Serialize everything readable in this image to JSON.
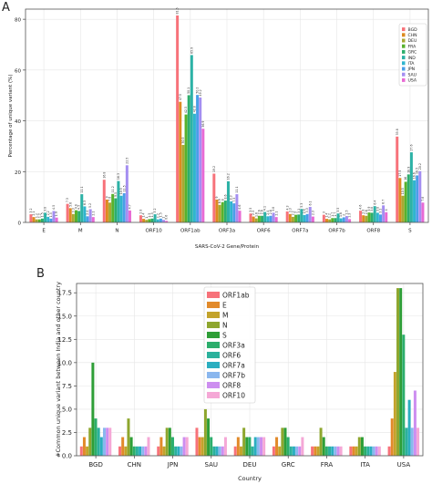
{
  "chart_data": [
    {
      "panel": "A",
      "type": "bar",
      "xlabel": "SARS-CoV-2 Gene/Protein",
      "ylabel": "Percentage of unique variant (%)",
      "ylim": [
        0,
        84
      ],
      "yticks": [
        0,
        20,
        40,
        60,
        80
      ],
      "categories": [
        "E",
        "M",
        "N",
        "ORF10",
        "ORF1ab",
        "ORF3a",
        "ORF6",
        "ORF7a",
        "ORF7b",
        "ORF8",
        "S"
      ],
      "legend_position": "top-right",
      "series": [
        {
          "name": "BGD",
          "color": "#f7727a",
          "values": [
            3.2,
            7.3,
            16.8,
            2.8,
            81.5,
            19.2,
            3.5,
            4.3,
            3.0,
            4.6,
            33.8
          ]
        },
        {
          "name": "CHN",
          "color": "#dd8a1f",
          "values": [
            2.1,
            5.6,
            9.0,
            1.4,
            47.5,
            9.0,
            2.3,
            3.3,
            1.4,
            2.8,
            17.5
          ]
        },
        {
          "name": "DEU",
          "color": "#a8a832",
          "values": [
            1.2,
            3.3,
            7.8,
            1.0,
            30.5,
            6.9,
            1.6,
            2.2,
            1.2,
            2.6,
            10.5
          ]
        },
        {
          "name": "FRA",
          "color": "#58b22c",
          "values": [
            1.2,
            4.8,
            11.2,
            1.3,
            42.5,
            8.0,
            2.6,
            3.0,
            1.7,
            3.9,
            16.0
          ]
        },
        {
          "name": "GRC",
          "color": "#2cae6c",
          "values": [
            1.5,
            4.5,
            9.5,
            1.5,
            50.1,
            8.6,
            2.6,
            3.1,
            1.7,
            3.8,
            18.9
          ]
        },
        {
          "name": "IND",
          "color": "#2cb2a6",
          "values": [
            3.8,
            11.1,
            16.3,
            3.2,
            65.9,
            16.2,
            4.1,
            5.3,
            3.5,
            6.4,
            27.6
          ]
        },
        {
          "name": "ITA",
          "color": "#2fb5ce",
          "values": [
            2.2,
            6.3,
            10.5,
            1.2,
            42.8,
            8.3,
            2.4,
            2.9,
            1.6,
            3.8,
            16.6
          ]
        },
        {
          "name": "JPN",
          "color": "#4a9ee8",
          "values": [
            1.5,
            2.4,
            11.5,
            1.5,
            50.2,
            7.5,
            2.6,
            3.3,
            2.0,
            3.1,
            18.5
          ]
        },
        {
          "name": "SAU",
          "color": "#a48ef1",
          "values": [
            4.5,
            5.2,
            22.5,
            1.0,
            49.2,
            11.1,
            3.8,
            6.1,
            2.5,
            6.7,
            20.2
          ]
        },
        {
          "name": "USA",
          "color": "#e86ad4",
          "values": [
            1.9,
            2.1,
            4.7,
            0.6,
            36.9,
            4.6,
            2.1,
            2.3,
            1.3,
            4.0,
            7.8
          ]
        }
      ]
    },
    {
      "panel": "B",
      "type": "bar",
      "xlabel": "Country",
      "ylabel": "#Common unique variant between India and other country",
      "ylim": [
        0,
        18.5
      ],
      "yticks": [
        0.0,
        2.5,
        5.0,
        7.5,
        10.0,
        12.5,
        15.0,
        17.5
      ],
      "categories": [
        "BGD",
        "CHN",
        "JPN",
        "SAU",
        "DEU",
        "GRC",
        "FRA",
        "ITA",
        "USA"
      ],
      "legend_position": "top-center",
      "series": [
        {
          "name": "ORF1ab",
          "color": "#f7727a",
          "values": [
            1,
            1,
            1,
            3,
            1,
            1,
            1,
            1,
            1
          ]
        },
        {
          "name": "E",
          "color": "#e28a2a",
          "values": [
            2,
            2,
            2,
            2,
            2,
            2,
            1,
            1,
            4
          ]
        },
        {
          "name": "M",
          "color": "#c3a32b",
          "values": [
            1,
            1,
            1,
            2,
            1,
            1,
            1,
            1,
            9
          ]
        },
        {
          "name": "N",
          "color": "#8ea62e",
          "values": [
            3,
            4,
            3,
            5,
            3,
            3,
            3,
            2,
            18
          ]
        },
        {
          "name": "S",
          "color": "#2e9e37",
          "values": [
            10,
            2,
            3,
            4,
            2,
            3,
            2,
            2,
            18
          ]
        },
        {
          "name": "ORF3a",
          "color": "#2cae6c",
          "values": [
            4,
            1,
            2,
            2,
            2,
            2,
            1,
            1,
            13
          ]
        },
        {
          "name": "ORF6",
          "color": "#2bb19c",
          "values": [
            3,
            1,
            1,
            1,
            1,
            1,
            1,
            1,
            3
          ]
        },
        {
          "name": "ORF7a",
          "color": "#2baec0",
          "values": [
            2,
            1,
            1,
            1,
            2,
            1,
            1,
            1,
            6
          ]
        },
        {
          "name": "ORF7b",
          "color": "#8ab7ee",
          "values": [
            3,
            1,
            1,
            1,
            2,
            1,
            1,
            1,
            3
          ]
        },
        {
          "name": "ORF8",
          "color": "#cd8ef0",
          "values": [
            3,
            1,
            2,
            1,
            2,
            1,
            1,
            1,
            7
          ]
        },
        {
          "name": "ORF10",
          "color": "#f5a8d6",
          "values": [
            3,
            2,
            2,
            2,
            2,
            2,
            1,
            1,
            3
          ]
        }
      ]
    }
  ]
}
